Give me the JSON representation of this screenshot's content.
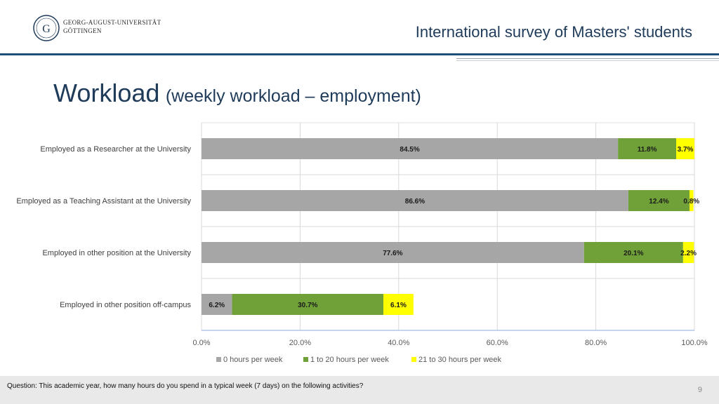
{
  "header": {
    "university_name_line1": "GEORG-AUGUST-UNIVERSITÄT",
    "university_name_line2": "GÖTTINGEN",
    "survey_title": "International survey of Masters' students",
    "logo_icon": "university-seal-icon"
  },
  "slide": {
    "title_main": "Workload",
    "title_sub": "(weekly workload – employment)",
    "question": "Question: This academic year, how many hours do you spend in a typical week (7 days) on the following activities?",
    "page_number": "9"
  },
  "colors": {
    "accent": "#1f4e79",
    "title": "#1f3b5a",
    "series_0": "#a6a6a6",
    "series_1": "#70a138",
    "series_2": "#ffff00"
  },
  "chart_data": {
    "type": "bar",
    "orientation": "horizontal",
    "stacked": true,
    "categories": [
      "Employed as a Researcher at the University",
      "Employed as a Teaching Assistant at the University",
      "Employed in other position at the University",
      "Employed in other position off-campus"
    ],
    "series": [
      {
        "name": "0 hours per week",
        "values": [
          84.5,
          86.6,
          77.6,
          6.2
        ],
        "labels": [
          "84.5%",
          "86.6%",
          "77.6%",
          "6.2%"
        ],
        "color": "#a6a6a6"
      },
      {
        "name": "1 to 20 hours per week",
        "values": [
          11.8,
          12.4,
          20.1,
          30.7
        ],
        "labels": [
          "11.8%",
          "12.4%",
          "20.1%",
          "30.7%"
        ],
        "color": "#70a138"
      },
      {
        "name": "21 to 30 hours per week",
        "values": [
          3.7,
          0.8,
          2.2,
          6.1
        ],
        "labels": [
          "3.7%",
          "0.8%",
          "2.2%",
          "6.1%"
        ],
        "color": "#ffff00"
      }
    ],
    "x_ticks": [
      "0.0%",
      "20.0%",
      "40.0%",
      "60.0%",
      "80.0%",
      "100.0%"
    ],
    "xlim": [
      0,
      100
    ],
    "grid": true,
    "legend_position": "bottom"
  }
}
